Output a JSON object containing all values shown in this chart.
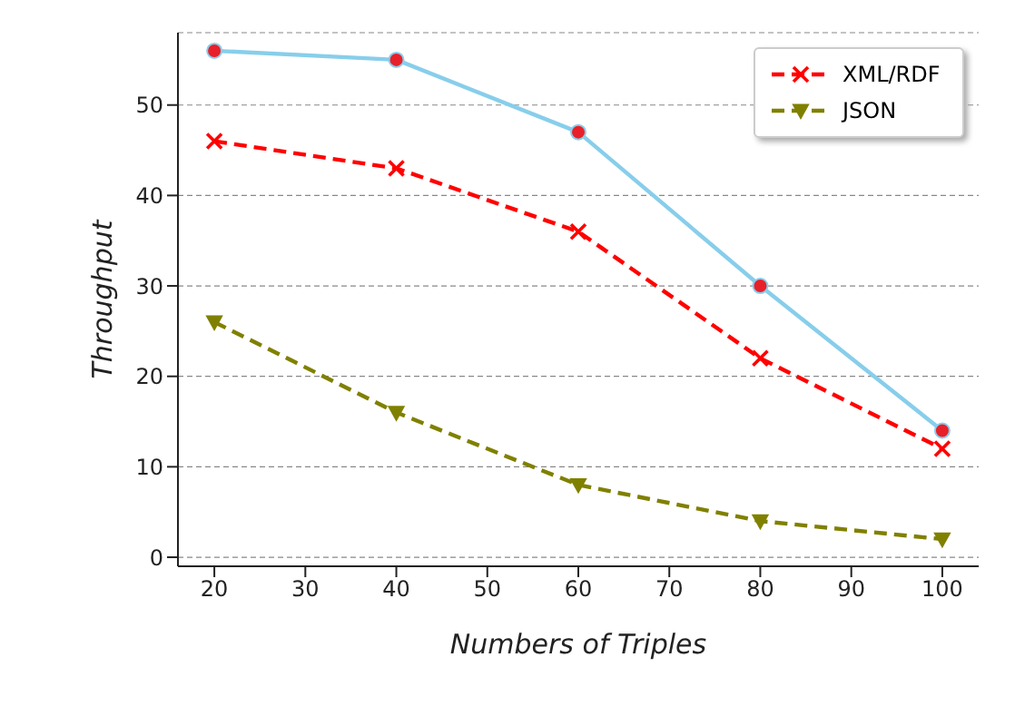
{
  "chart_data": {
    "type": "line",
    "xlabel": "Numbers of Triples",
    "ylabel": "Throughput",
    "x": [
      20,
      40,
      60,
      80,
      100
    ],
    "series": [
      {
        "color": "#87ceeb",
        "values": [
          56,
          55,
          47,
          30,
          14
        ],
        "marker": "circle",
        "line_style": "solid"
      },
      {
        "name": "XML/RDF",
        "color": "#ff0000",
        "values": [
          46,
          43,
          36,
          22,
          12
        ],
        "marker": "cross",
        "line_style": "dashed"
      },
      {
        "name": "JSON",
        "color": "#808000",
        "values": [
          26,
          16,
          8,
          4,
          2
        ],
        "marker": "triangle",
        "line_style": "dashed"
      }
    ],
    "xlim": [
      16,
      104
    ],
    "xticks": [
      20,
      30,
      40,
      50,
      60,
      70,
      80,
      90,
      100
    ],
    "ylim": [
      -1,
      58
    ],
    "yticks": [
      0,
      10,
      20,
      30,
      40,
      50
    ],
    "grid": "y",
    "legend": "top right"
  }
}
